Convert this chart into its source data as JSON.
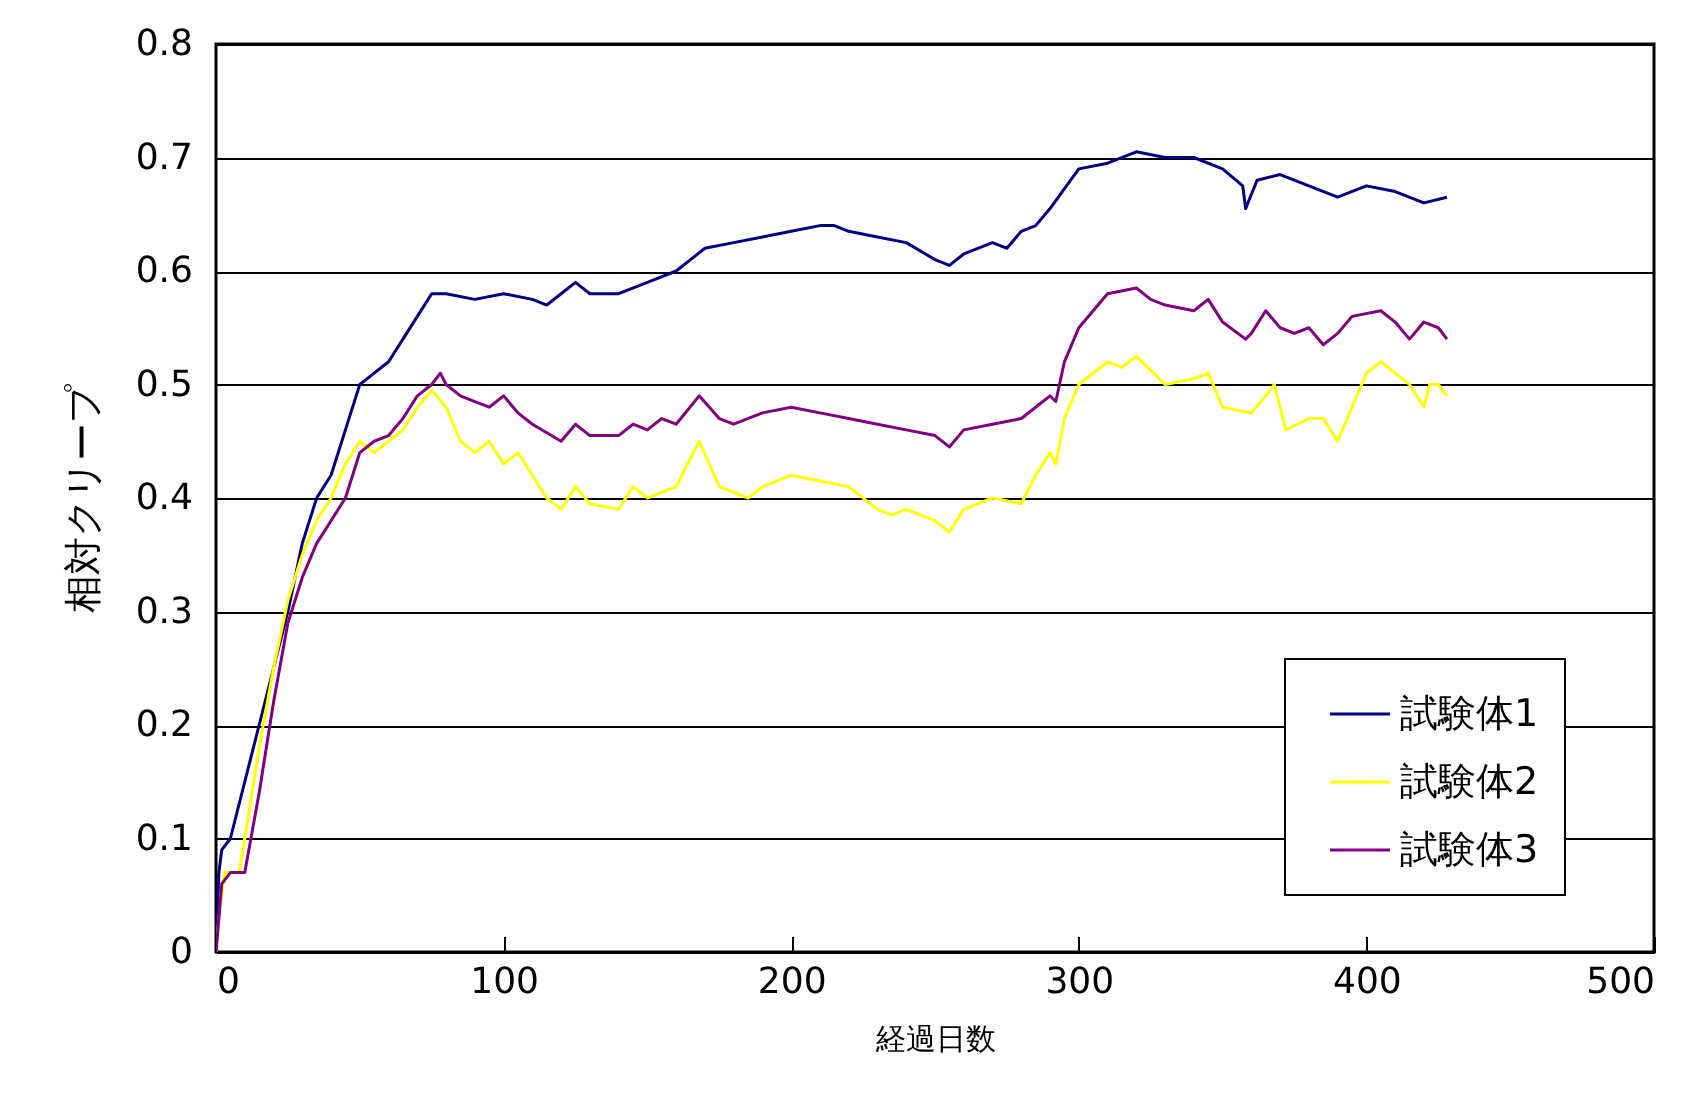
{
  "chart_data": {
    "type": "line",
    "xlabel": "経過日数",
    "ylabel": "相対クリープ",
    "xlim": [
      0,
      500
    ],
    "xticks": [
      0,
      100,
      200,
      300,
      400,
      500
    ],
    "ylim": [
      0,
      0.8
    ],
    "yticks": [
      0,
      0.1,
      0.2,
      0.3,
      0.4,
      0.5,
      0.6,
      0.7,
      0.8
    ],
    "grid": "y",
    "legend": "bottom right",
    "line_style": "solid",
    "marker": "none",
    "series": [
      {
        "name": "試験体1",
        "color": "#000080",
        "x": [
          0,
          1,
          2,
          5,
          10,
          15,
          20,
          25,
          30,
          35,
          40,
          45,
          50,
          55,
          60,
          65,
          70,
          75,
          80,
          90,
          100,
          110,
          115,
          120,
          125,
          130,
          140,
          150,
          160,
          165,
          170,
          180,
          190,
          200,
          210,
          215,
          220,
          230,
          240,
          250,
          255,
          260,
          270,
          275,
          280,
          285,
          290,
          300,
          310,
          320,
          330,
          340,
          350,
          357,
          358,
          362,
          370,
          380,
          390,
          400,
          410,
          420,
          428
        ],
        "values": [
          0,
          0.07,
          0.09,
          0.1,
          0.15,
          0.2,
          0.25,
          0.3,
          0.36,
          0.4,
          0.42,
          0.46,
          0.5,
          0.51,
          0.52,
          0.54,
          0.56,
          0.58,
          0.58,
          0.575,
          0.58,
          0.575,
          0.57,
          0.58,
          0.59,
          0.58,
          0.58,
          0.59,
          0.6,
          0.61,
          0.62,
          0.625,
          0.63,
          0.635,
          0.64,
          0.64,
          0.635,
          0.63,
          0.625,
          0.61,
          0.605,
          0.615,
          0.625,
          0.62,
          0.635,
          0.64,
          0.655,
          0.69,
          0.695,
          0.705,
          0.7,
          0.7,
          0.69,
          0.675,
          0.655,
          0.68,
          0.685,
          0.675,
          0.665,
          0.675,
          0.67,
          0.66,
          0.665
        ]
      },
      {
        "name": "試験体2",
        "color": "#ffff00",
        "x": [
          0,
          1,
          3,
          8,
          10,
          15,
          20,
          25,
          30,
          35,
          40,
          45,
          50,
          55,
          60,
          65,
          70,
          75,
          80,
          85,
          90,
          95,
          100,
          105,
          110,
          115,
          120,
          125,
          130,
          140,
          145,
          150,
          160,
          168,
          175,
          185,
          190,
          200,
          210,
          220,
          230,
          235,
          240,
          250,
          255,
          260,
          270,
          280,
          285,
          290,
          292,
          295,
          300,
          310,
          315,
          320,
          330,
          340,
          345,
          350,
          360,
          365,
          368,
          372,
          380,
          385,
          390,
          395,
          400,
          405,
          410,
          415,
          420,
          422,
          425,
          428
        ],
        "values": [
          0,
          0.03,
          0.07,
          0.07,
          0.1,
          0.18,
          0.25,
          0.31,
          0.35,
          0.38,
          0.4,
          0.43,
          0.45,
          0.44,
          0.45,
          0.46,
          0.48,
          0.495,
          0.48,
          0.45,
          0.44,
          0.45,
          0.43,
          0.44,
          0.42,
          0.4,
          0.39,
          0.41,
          0.395,
          0.39,
          0.41,
          0.4,
          0.41,
          0.45,
          0.41,
          0.4,
          0.41,
          0.42,
          0.415,
          0.41,
          0.39,
          0.385,
          0.39,
          0.38,
          0.37,
          0.39,
          0.4,
          0.395,
          0.42,
          0.44,
          0.43,
          0.47,
          0.5,
          0.52,
          0.515,
          0.525,
          0.5,
          0.505,
          0.51,
          0.48,
          0.475,
          0.49,
          0.5,
          0.46,
          0.47,
          0.47,
          0.45,
          0.48,
          0.51,
          0.52,
          0.51,
          0.5,
          0.48,
          0.5,
          0.5,
          0.49
        ]
      },
      {
        "name": "試験体3",
        "color": "#800080",
        "x": [
          0,
          2,
          5,
          10,
          15,
          20,
          25,
          30,
          35,
          40,
          45,
          50,
          55,
          60,
          65,
          70,
          75,
          78,
          80,
          85,
          90,
          95,
          100,
          105,
          110,
          120,
          125,
          130,
          140,
          145,
          150,
          155,
          160,
          168,
          175,
          180,
          190,
          200,
          210,
          220,
          230,
          240,
          250,
          255,
          260,
          270,
          280,
          285,
          290,
          292,
          295,
          300,
          310,
          320,
          325,
          330,
          340,
          345,
          350,
          358,
          360,
          365,
          370,
          375,
          380,
          385,
          390,
          395,
          405,
          410,
          415,
          420,
          425,
          428
        ],
        "values": [
          0,
          0.06,
          0.07,
          0.07,
          0.14,
          0.22,
          0.29,
          0.33,
          0.36,
          0.38,
          0.4,
          0.44,
          0.45,
          0.455,
          0.47,
          0.49,
          0.5,
          0.51,
          0.5,
          0.49,
          0.485,
          0.48,
          0.49,
          0.475,
          0.465,
          0.45,
          0.465,
          0.455,
          0.455,
          0.465,
          0.46,
          0.47,
          0.465,
          0.49,
          0.47,
          0.465,
          0.475,
          0.48,
          0.475,
          0.47,
          0.465,
          0.46,
          0.455,
          0.445,
          0.46,
          0.465,
          0.47,
          0.48,
          0.49,
          0.485,
          0.52,
          0.55,
          0.58,
          0.585,
          0.575,
          0.57,
          0.565,
          0.575,
          0.555,
          0.54,
          0.545,
          0.565,
          0.55,
          0.545,
          0.55,
          0.535,
          0.545,
          0.56,
          0.565,
          0.555,
          0.54,
          0.555,
          0.55,
          0.54
        ]
      }
    ]
  }
}
